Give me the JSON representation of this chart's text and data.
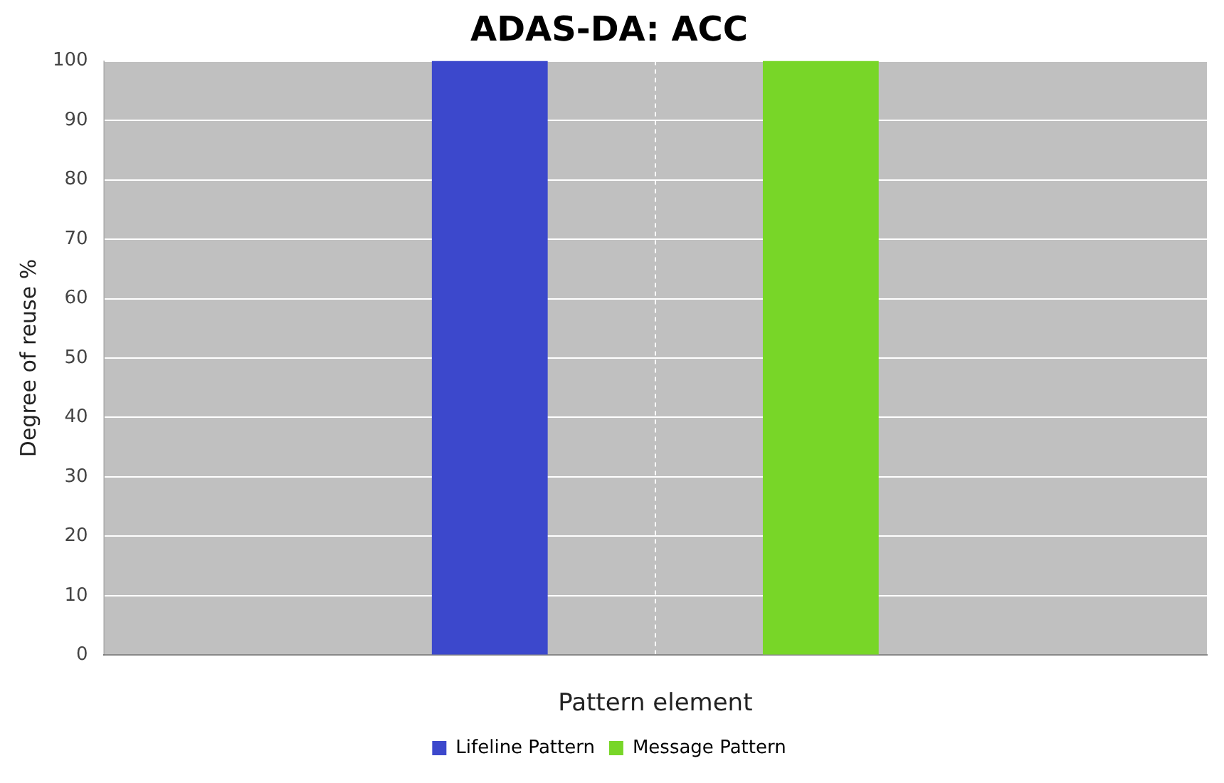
{
  "chart_data": {
    "type": "bar",
    "title": "ADAS-DA: ACC",
    "xlabel": "Pattern element",
    "ylabel": "Degree of reuse %",
    "categories": [
      null
    ],
    "series": [
      {
        "name": "Lifeline Pattern",
        "color": "#3c48cc",
        "values": [
          100
        ]
      },
      {
        "name": "Message Pattern",
        "color": "#78d628",
        "values": [
          100
        ]
      }
    ],
    "ylim": [
      0,
      100
    ],
    "yticks": [
      0,
      10,
      20,
      30,
      40,
      50,
      60,
      70,
      80,
      90,
      100
    ],
    "grid": true,
    "legend": "bottom"
  }
}
